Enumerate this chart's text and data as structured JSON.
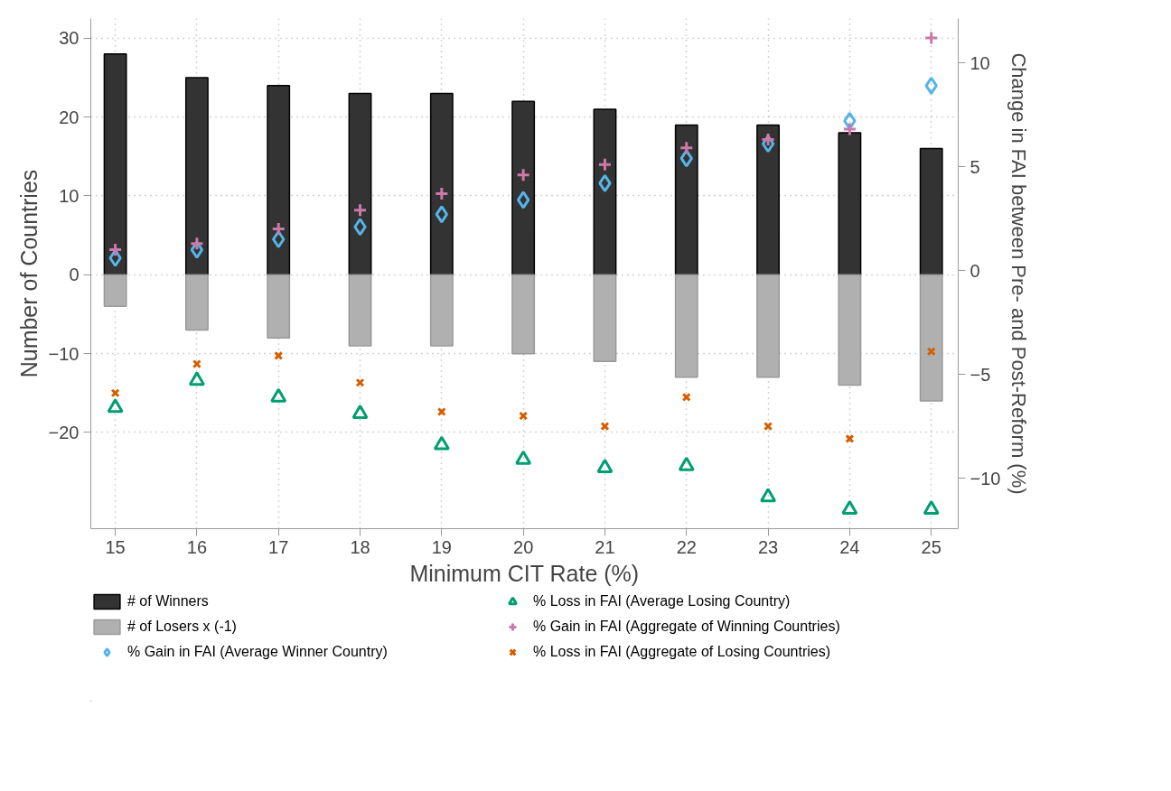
{
  "chart_data": {
    "type": "bar",
    "xlabel": "Minimum CIT Rate (%)",
    "ylabel": "Number of Countries",
    "y2label": "Change in FAI between Pre- and Post-Reform (%)",
    "x": [
      15,
      16,
      17,
      18,
      19,
      20,
      21,
      22,
      23,
      24,
      25
    ],
    "xlim": [
      14.7,
      25.33
    ],
    "xticks": [
      15,
      16,
      17,
      18,
      19,
      20,
      21,
      22,
      23,
      24,
      25
    ],
    "ylim": [
      -32.2,
      32.5
    ],
    "yticks": [
      -20,
      -10,
      0,
      10,
      20,
      30
    ],
    "y2lim": [
      -12.43,
      12.13
    ],
    "y2ticks": [
      -10,
      -5,
      0,
      5,
      10
    ],
    "grid": true,
    "legend": "bottom",
    "stacked": true,
    "series": [
      {
        "name": "# of Winners",
        "color": "#333333",
        "values": [
          28,
          25,
          24,
          23,
          23,
          22,
          21,
          19,
          19,
          18,
          16
        ]
      },
      {
        "name": "# of Losers x (-1)",
        "color": "#b0b0b0",
        "values": [
          -4,
          -7,
          -8,
          -9,
          -9,
          -10,
          -11,
          -13,
          -13,
          -14,
          -16
        ]
      },
      {
        "name": "% Gain in FAI (Average Winner Country)",
        "type": "scatter",
        "axis": "y2",
        "marker": "diamond",
        "color": "#56b4e9",
        "values": [
          0.6,
          1.0,
          1.5,
          2.1,
          2.7,
          3.4,
          4.2,
          5.4,
          6.1,
          7.2,
          8.9
        ]
      },
      {
        "name": "% Loss in FAI (Average Losing Country)",
        "type": "scatter",
        "axis": "y2",
        "marker": "triangle",
        "color": "#009e73",
        "values": [
          -6.6,
          -5.3,
          -6.1,
          -6.9,
          -8.4,
          -9.1,
          -9.5,
          -9.4,
          -10.9,
          -11.5,
          -11.5
        ]
      },
      {
        "name": "% Gain in FAI (Aggregate of Winning Countries)",
        "type": "scatter",
        "axis": "y2",
        "marker": "cross",
        "color": "#cc79a7",
        "values": [
          1.0,
          1.3,
          2.0,
          2.9,
          3.7,
          4.6,
          5.1,
          5.9,
          6.3,
          6.8,
          11.2
        ]
      },
      {
        "name": "% Loss in FAI (Aggregate of Losing Countries)",
        "type": "scatter",
        "axis": "y2",
        "marker": "x",
        "color": "#d55e00",
        "values": [
          -5.9,
          -4.5,
          -4.1,
          -5.4,
          -6.8,
          -7.0,
          -7.5,
          -6.1,
          -7.5,
          -8.1,
          -3.9
        ]
      }
    ]
  }
}
